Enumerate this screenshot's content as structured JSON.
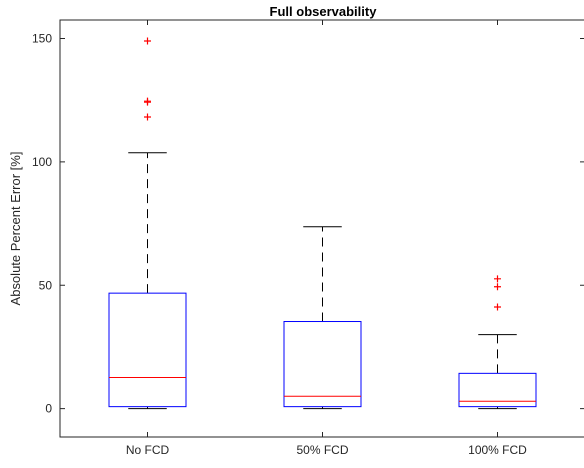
{
  "chart_data": {
    "type": "box",
    "title": "Full observability",
    "xlabel": "",
    "ylabel": "Absolute Percent Error [%]",
    "ylim": [
      -11.5,
      157.5
    ],
    "yticks": [
      0,
      50,
      100,
      150
    ],
    "grid": false,
    "legend": "none",
    "colors": {
      "box": "#0000ff",
      "median": "#ff0000",
      "whisker": "#000000",
      "outlier": "#ff0000",
      "axis": "#262626"
    },
    "categories": [
      "No FCD",
      "50% FCD",
      "100% FCD"
    ],
    "boxes": [
      {
        "label": "No FCD",
        "whisker_low": 0,
        "q1": 0.8,
        "median": 12.6,
        "q3": 46.8,
        "whisker_high": 103.7,
        "outliers": [
          118.2,
          124.2,
          124.6,
          149
        ]
      },
      {
        "label": "50% FCD",
        "whisker_low": 0,
        "q1": 0.8,
        "median": 5.0,
        "q3": 35.3,
        "whisker_high": 73.7,
        "outliers": []
      },
      {
        "label": "100% FCD",
        "whisker_low": 0,
        "q1": 0.8,
        "median": 3.0,
        "q3": 14.3,
        "whisker_high": 30.0,
        "outliers": [
          41.2,
          49.4,
          52.6
        ]
      }
    ]
  }
}
